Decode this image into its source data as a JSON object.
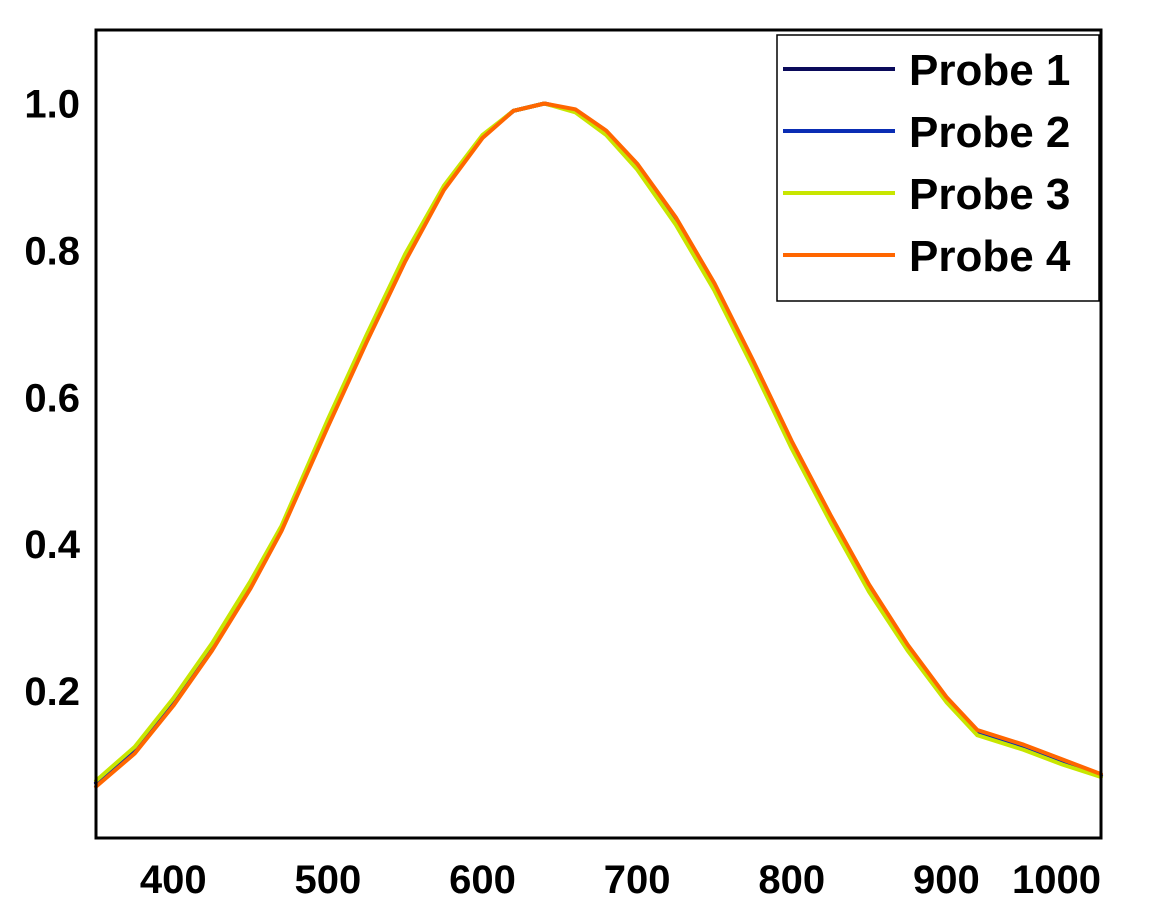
{
  "chart_data": {
    "type": "line",
    "title": "",
    "xlabel": "",
    "ylabel": "",
    "xlim": [
      350,
      1000
    ],
    "ylim": [
      0.0,
      1.1
    ],
    "x_ticks": [
      "400",
      "500",
      "600",
      "700",
      "800",
      "900",
      "1000"
    ],
    "y_ticks": [
      "0.2",
      "0.4",
      "0.6",
      "0.8",
      "1.0"
    ],
    "grid": false,
    "legend_position": "top-right",
    "x": [
      350,
      375,
      400,
      425,
      450,
      470,
      500,
      525,
      550,
      575,
      600,
      620,
      640,
      660,
      680,
      700,
      725,
      750,
      775,
      800,
      825,
      850,
      875,
      900,
      920,
      950,
      975,
      1000
    ],
    "series": [
      {
        "name": "Probe 1",
        "color": "#0a0a5a",
        "values": [
          0.075,
          0.12,
          0.185,
          0.26,
          0.345,
          0.42,
          0.565,
          0.68,
          0.79,
          0.885,
          0.955,
          0.99,
          1.0,
          0.99,
          0.96,
          0.915,
          0.84,
          0.75,
          0.645,
          0.535,
          0.435,
          0.34,
          0.26,
          0.19,
          0.145,
          0.125,
          0.105,
          0.085
        ]
      },
      {
        "name": "Probe 2",
        "color": "#0a2db4",
        "values": [
          0.075,
          0.12,
          0.185,
          0.26,
          0.345,
          0.42,
          0.565,
          0.68,
          0.79,
          0.885,
          0.955,
          0.99,
          1.0,
          0.99,
          0.96,
          0.915,
          0.84,
          0.75,
          0.645,
          0.535,
          0.435,
          0.34,
          0.26,
          0.19,
          0.145,
          0.125,
          0.105,
          0.085
        ]
      },
      {
        "name": "Probe 3",
        "color": "#c8e600",
        "values": [
          0.078,
          0.124,
          0.19,
          0.265,
          0.35,
          0.425,
          0.57,
          0.685,
          0.795,
          0.888,
          0.957,
          0.99,
          1.0,
          0.988,
          0.957,
          0.91,
          0.835,
          0.745,
          0.64,
          0.53,
          0.43,
          0.335,
          0.255,
          0.185,
          0.14,
          0.12,
          0.1,
          0.083
        ]
      },
      {
        "name": "Probe 4",
        "color": "#ff6600",
        "values": [
          0.07,
          0.115,
          0.18,
          0.255,
          0.34,
          0.418,
          0.56,
          0.675,
          0.785,
          0.882,
          0.953,
          0.99,
          1.0,
          0.992,
          0.963,
          0.918,
          0.845,
          0.755,
          0.65,
          0.54,
          0.44,
          0.345,
          0.263,
          0.192,
          0.147,
          0.127,
          0.107,
          0.087
        ]
      }
    ]
  }
}
